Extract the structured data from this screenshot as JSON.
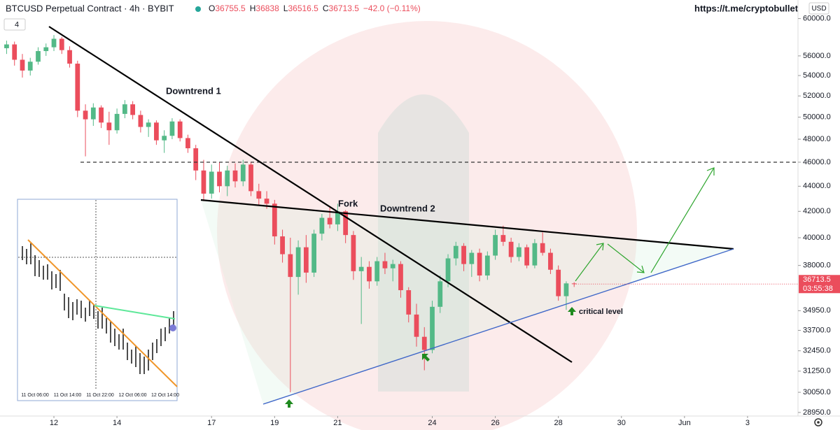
{
  "header": {
    "title": "BTCUSD Perpetual Contract · 4h · BYBIT",
    "ohlc_labels": [
      "O",
      "H",
      "L",
      "C"
    ],
    "change_label": "−42.0 (−0.11%)",
    "indicator": "4",
    "currency": "USD",
    "link": "https://t.me/cryptobullet",
    "countdown": "03:55:38"
  },
  "annotations": {
    "downtrend_1": "Downtrend 1",
    "fork": "Fork",
    "downtrend_2": "Downtrend 2",
    "critical": "critical level"
  },
  "inset": {
    "x_labels": [
      "11 Oct 06:00",
      "11 Oct 14:00",
      "11 Oct 22:00",
      "12 Oct 06:00",
      "12 Oct 14:00"
    ]
  },
  "chart_data": {
    "type": "candlestick",
    "log_scale": true,
    "grid": false,
    "up_color": "#53b987",
    "down_color": "#eb4d5c",
    "x": [
      10.5,
      10.75,
      11,
      11.25,
      11.5,
      11.75,
      12,
      12.25,
      12.5,
      12.75,
      13,
      13.25,
      13.5,
      13.75,
      14,
      14.25,
      14.5,
      14.75,
      15,
      15.25,
      15.5,
      15.75,
      16,
      16.25,
      16.5,
      16.75,
      17,
      17.25,
      17.5,
      17.75,
      18,
      18.25,
      18.5,
      18.75,
      19,
      19.25,
      19.5,
      19.75,
      20,
      20.25,
      20.5,
      20.75,
      21,
      21.25,
      21.5,
      21.75,
      22,
      22.25,
      22.5,
      22.75,
      23,
      23.25,
      23.5,
      23.75,
      24,
      24.25,
      24.5,
      24.75,
      25,
      25.25,
      25.5,
      25.75,
      26,
      26.25,
      26.5,
      26.75,
      27,
      27.25,
      27.5,
      27.75,
      28,
      28.25,
      28.5
    ],
    "open": [
      56800,
      57200,
      55600,
      54500,
      55400,
      56500,
      56900,
      57800,
      56600,
      55200,
      50600,
      49800,
      50900,
      49500,
      48800,
      50300,
      51200,
      50200,
      49100,
      49500,
      47900,
      48300,
      49600,
      48100,
      47200,
      45300,
      43400,
      45200,
      44000,
      45300,
      44400,
      45800,
      43600,
      43000,
      42600,
      40100,
      38800,
      37200,
      39300,
      37500,
      40300,
      41500,
      41000,
      42000,
      40200,
      37600,
      37900,
      36900,
      38300,
      37800,
      38100,
      36300,
      34700,
      33300,
      32500,
      35200,
      36900,
      38500,
      39400,
      38100,
      38900,
      37300,
      38700,
      40200,
      39700,
      38600,
      39300,
      38000,
      39600,
      38900,
      37700,
      35900,
      36755.5
    ],
    "high": [
      57600,
      57500,
      56200,
      55800,
      56900,
      57300,
      58200,
      58000,
      57000,
      55500,
      51200,
      51300,
      51100,
      50500,
      50800,
      51600,
      51500,
      50600,
      49800,
      49700,
      48800,
      49900,
      49800,
      48400,
      47500,
      46200,
      45800,
      46000,
      45700,
      45900,
      46200,
      46000,
      44200,
      43600,
      42900,
      40600,
      40000,
      39800,
      40200,
      40600,
      41800,
      42300,
      42600,
      42100,
      40500,
      38600,
      38300,
      38600,
      38900,
      38400,
      38300,
      36500,
      35400,
      33900,
      35600,
      37300,
      38800,
      39700,
      39600,
      39100,
      39200,
      39000,
      40600,
      40900,
      40000,
      39600,
      39500,
      39900,
      40400,
      39200,
      38000,
      36900,
      36838
    ],
    "low": [
      56200,
      55000,
      53800,
      54000,
      55100,
      56000,
      56500,
      56200,
      54800,
      50000,
      46500,
      49200,
      49000,
      47500,
      48500,
      49900,
      49800,
      48600,
      48200,
      47500,
      46800,
      48000,
      47800,
      46800,
      44500,
      42800,
      43000,
      43500,
      43200,
      43900,
      44000,
      43200,
      42500,
      42200,
      39500,
      38200,
      30050,
      36000,
      36800,
      37200,
      39800,
      40700,
      40500,
      39600,
      37000,
      34100,
      36400,
      36600,
      37400,
      36900,
      35800,
      34200,
      32700,
      31300,
      32300,
      34800,
      36500,
      38000,
      37600,
      37200,
      36900,
      37000,
      38400,
      39400,
      38200,
      38300,
      37800,
      37800,
      38700,
      37400,
      35600,
      35000,
      36516.5
    ],
    "close": [
      57200,
      55600,
      54500,
      55400,
      56500,
      56900,
      57800,
      56600,
      55200,
      50600,
      49800,
      50900,
      49500,
      48800,
      50300,
      51200,
      50200,
      49100,
      49500,
      47900,
      48300,
      49600,
      48100,
      47200,
      45300,
      43400,
      45200,
      44000,
      45300,
      44400,
      45800,
      43600,
      43000,
      42600,
      40100,
      38800,
      37200,
      39300,
      37500,
      40300,
      41500,
      41000,
      42000,
      40200,
      37600,
      37900,
      36900,
      38300,
      37800,
      38100,
      36300,
      34700,
      33300,
      32500,
      35200,
      36900,
      38500,
      39400,
      38100,
      38900,
      37300,
      38700,
      40200,
      39700,
      38600,
      39300,
      38000,
      39600,
      38900,
      37700,
      35900,
      36760,
      36713.5
    ],
    "xlim": [
      10.29,
      35.6
    ],
    "xticks": [
      12,
      14,
      17,
      19,
      21,
      24,
      26,
      28,
      30,
      {
        "value": 32,
        "label": "Jun"
      },
      {
        "value": 34,
        "label": "3"
      }
    ],
    "ylim": [
      28760,
      62100
    ],
    "yticks": [
      {
        "value": 60000,
        "label": "60000.0"
      },
      {
        "value": 56000,
        "label": "56000.0"
      },
      {
        "value": 54000,
        "label": "54000.0"
      },
      {
        "value": 52000,
        "label": "52000.0"
      },
      {
        "value": 50000,
        "label": "50000.0"
      },
      {
        "value": 48000,
        "label": "48000.0"
      },
      {
        "value": 46000,
        "label": "46000.0"
      },
      {
        "value": 44000,
        "label": "44000.0"
      },
      {
        "value": 42000,
        "label": "42000.0"
      },
      {
        "value": 40000,
        "label": "40000.0"
      },
      {
        "value": 38000,
        "label": "38000.0"
      },
      {
        "value": 34950,
        "label": "34950.0"
      },
      {
        "value": 33700,
        "label": "33700.0"
      },
      {
        "value": 32450,
        "label": "32450.0"
      },
      {
        "value": 31250,
        "label": "31250.0"
      },
      {
        "value": 30050,
        "label": "30050.0"
      },
      {
        "value": 28950,
        "label": "28950.0"
      }
    ]
  }
}
